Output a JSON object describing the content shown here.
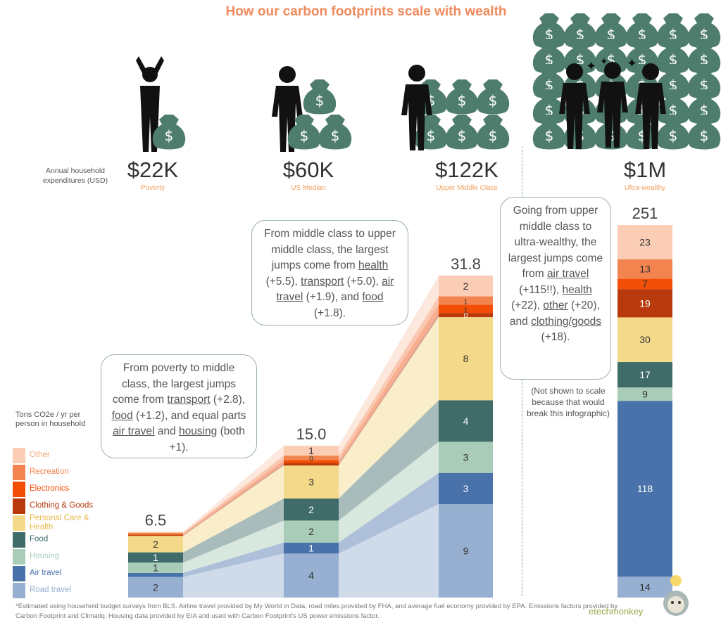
{
  "title": "How our carbon footprints scale with wealth",
  "expenditure_label": "Annual household expenditures (USD)",
  "tiers": [
    {
      "amount": "$22K",
      "label": "Poverty"
    },
    {
      "amount": "$60K",
      "label": "US Median"
    },
    {
      "amount": "$122K",
      "label": "Upper Middle Class"
    },
    {
      "amount": "$1M",
      "label": "Ultra-wealthy"
    }
  ],
  "notes": {
    "poverty_to_middle": "From poverty to middle class, the largest jumps come from <u>transport</u> (+2.8), <u>food</u> (+1.2), and equal parts <u>air travel</u> and <u>housing</u> (both +1).",
    "middle_to_upper": "From middle class to upper middle class, the largest jumps come from <u>health</u> (+5.5), <u>transport</u> (+5.0), <u>air travel</u> (+1.9), and <u>food</u> (+1.8).",
    "upper_to_ultra": "Going from upper middle class to ultra-wealthy, the largest jumps come from <u>air travel</u> (+115!!), <u>health</u> (+22), <u>other</u> (+20), and <u>clothing/goods</u> (+18).",
    "not_to_scale": "(Not shown to scale because that would break this infographic)"
  },
  "legend_title": "Tons CO2e / yr per person in household",
  "footnote": "*Estimated using household budget surveys from BLS. Airline travel provided by My World in Data, road miles provided by FHA, and average fuel economy provided by EPA. Emissions factors provided by Carbon Footprint and Climatiq. Housing data provided by EIA and used with Carbon Footprint's US power emissions factor.",
  "brand": "etechmonkey",
  "colors": {
    "Other": "#FBCDB5",
    "Recreation": "#F3844F",
    "Electronics": "#F24E06",
    "Clothing & Goods": "#B83A0C",
    "Personal Care & Health": "#F5D98A",
    "Food": "#3F6B69",
    "Housing": "#A9CCB8",
    "Air travel": "#4A72AA",
    "Road travel": "#97B0D1",
    "icon_green": "#4E7D6E",
    "title": "#F08A5D"
  },
  "chart_data": {
    "type": "bar",
    "title": "How our carbon footprints scale with wealth",
    "ylabel": "Tons CO2e / yr per person in household",
    "categories": [
      "$22K",
      "$60K",
      "$122K",
      "$1M"
    ],
    "category_labels": [
      "Poverty",
      "US Median",
      "Upper Middle Class",
      "Ultra-wealthy"
    ],
    "totals": [
      "6.5",
      "15.0",
      "31.8",
      "251"
    ],
    "stacked": true,
    "series": [
      {
        "name": "Road travel",
        "values": [
          2,
          4,
          9,
          14
        ],
        "labels": [
          "2",
          "4",
          "9",
          "14"
        ]
      },
      {
        "name": "Air travel",
        "values": [
          0.4,
          1,
          3,
          118
        ],
        "labels": [
          "",
          "1",
          "3",
          "118"
        ]
      },
      {
        "name": "Housing",
        "values": [
          1,
          2,
          3,
          9
        ],
        "labels": [
          "1",
          "2",
          "3",
          "9"
        ]
      },
      {
        "name": "Food",
        "values": [
          1,
          2,
          4,
          17
        ],
        "labels": [
          "1",
          "2",
          "4",
          "17"
        ]
      },
      {
        "name": "Personal Care & Health",
        "values": [
          1.6,
          3,
          8,
          30
        ],
        "labels": [
          "2",
          "3",
          "8",
          "30"
        ]
      },
      {
        "name": "Clothing & Goods",
        "values": [
          0.1,
          0.2,
          0.4,
          19
        ],
        "labels": [
          "0",
          "0",
          "0",
          "19"
        ]
      },
      {
        "name": "Electronics",
        "values": [
          0.1,
          0.3,
          0.8,
          7
        ],
        "labels": [
          "0",
          "0",
          "1",
          "7"
        ]
      },
      {
        "name": "Recreation",
        "values": [
          0.1,
          0.4,
          0.8,
          13
        ],
        "labels": [
          "0",
          "0",
          "1",
          "13"
        ]
      },
      {
        "name": "Other",
        "values": [
          0.1,
          0.9,
          2,
          23
        ],
        "labels": [
          "0",
          "1",
          "2",
          "23"
        ]
      }
    ],
    "note": "$1M column not shown to scale"
  }
}
